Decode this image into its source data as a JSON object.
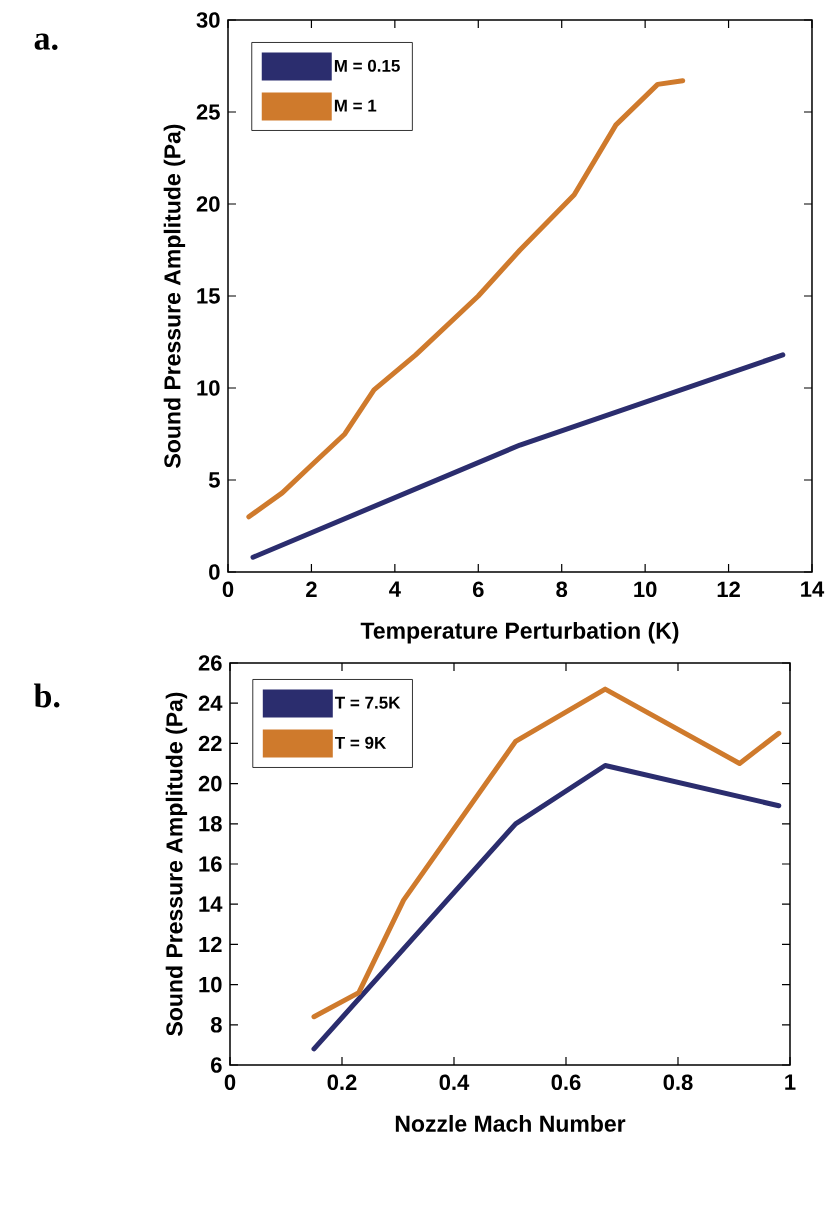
{
  "chart_data": [
    {
      "type": "line",
      "xlabel": "Temperature Perturbation (K)",
      "ylabel": "Sound Pressure Amplitude (Pa)",
      "annotations": [
        "a."
      ],
      "legend": "top left",
      "xlim": [
        0,
        14
      ],
      "ylim": [
        0,
        30
      ],
      "xticks": [
        0,
        2,
        4,
        6,
        8,
        10,
        12,
        14
      ],
      "yticks": [
        0,
        5,
        10,
        15,
        20,
        25,
        30
      ],
      "series": [
        {
          "name": "M = 0.15",
          "color": "#2b2d6e",
          "x": [
            0.6,
            7,
            13.3
          ],
          "values": [
            0.8,
            6.9,
            11.8
          ]
        },
        {
          "name": "M = 1",
          "color": "#cf7a2c",
          "x": [
            0.5,
            1.3,
            2,
            2.8,
            3.5,
            4.5,
            6,
            7,
            8.3,
            9.3,
            10.3,
            10.9
          ],
          "values": [
            3.0,
            4.3,
            5.8,
            7.5,
            9.9,
            11.8,
            15,
            17.5,
            20.5,
            24.3,
            26.5,
            26.7
          ]
        }
      ]
    },
    {
      "type": "line",
      "xlabel": "Nozzle Mach Number",
      "ylabel": "Sound Pressure Amplitude (Pa)",
      "annotations": [
        "b."
      ],
      "legend": "top left",
      "xlim": [
        0,
        1
      ],
      "ylim": [
        6,
        26
      ],
      "xticks": [
        0,
        0.2,
        0.4,
        0.6,
        0.8,
        1
      ],
      "yticks": [
        6,
        8,
        10,
        12,
        14,
        16,
        18,
        20,
        22,
        24,
        26
      ],
      "series": [
        {
          "name": "T = 7.5K",
          "color": "#2b2d6e",
          "x": [
            0.15,
            0.51,
            0.67,
            0.98
          ],
          "values": [
            6.8,
            18.0,
            20.9,
            18.9
          ]
        },
        {
          "name": "T = 9K",
          "color": "#cf7a2c",
          "x": [
            0.15,
            0.23,
            0.31,
            0.51,
            0.67,
            0.91,
            0.98
          ],
          "values": [
            8.4,
            9.6,
            14.2,
            22.1,
            24.7,
            21.0,
            22.5
          ]
        }
      ]
    }
  ]
}
